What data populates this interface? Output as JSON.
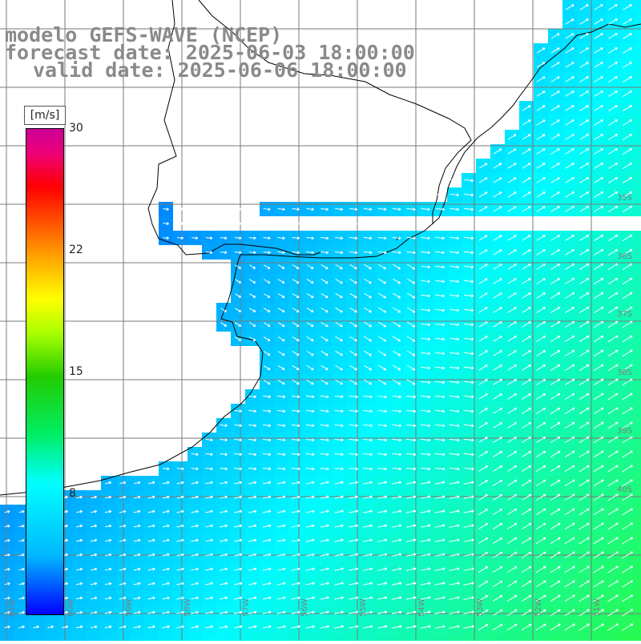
{
  "title": {
    "line1": "modelo GEFS-WAVE (NCEP)",
    "line2": "forecast date: 2025-06-03 18:00:00",
    "line3": "valid date: 2025-06-06 18:00:00"
  },
  "colorbar": {
    "unit": "[m/s]",
    "ticks": [
      "30",
      "22",
      "15",
      "8"
    ],
    "tick_values": [
      30,
      22,
      15,
      8
    ],
    "range": [
      0,
      30
    ]
  },
  "grid": {
    "right_labels": [
      "35S",
      "36S",
      "37S",
      "38S",
      "39S",
      "40S"
    ],
    "bottom_labels": [
      "61W",
      "60W",
      "59W",
      "58W",
      "57W",
      "56W",
      "55W",
      "54W",
      "53W",
      "52W",
      "51W"
    ]
  },
  "colors": {
    "land": "#ffffff",
    "coast": "#000000",
    "gridline": "#7a7a7a",
    "title": "#8a8a8a",
    "arrow": "#ffffff"
  },
  "map_data": {
    "type": "wind-speed field with direction arrows",
    "variable": "wind speed",
    "units": "m/s",
    "prevailing_direction": "toward east-southeast near coast, toward northeast offshore",
    "speed_range_shown": [
      2,
      14
    ]
  }
}
